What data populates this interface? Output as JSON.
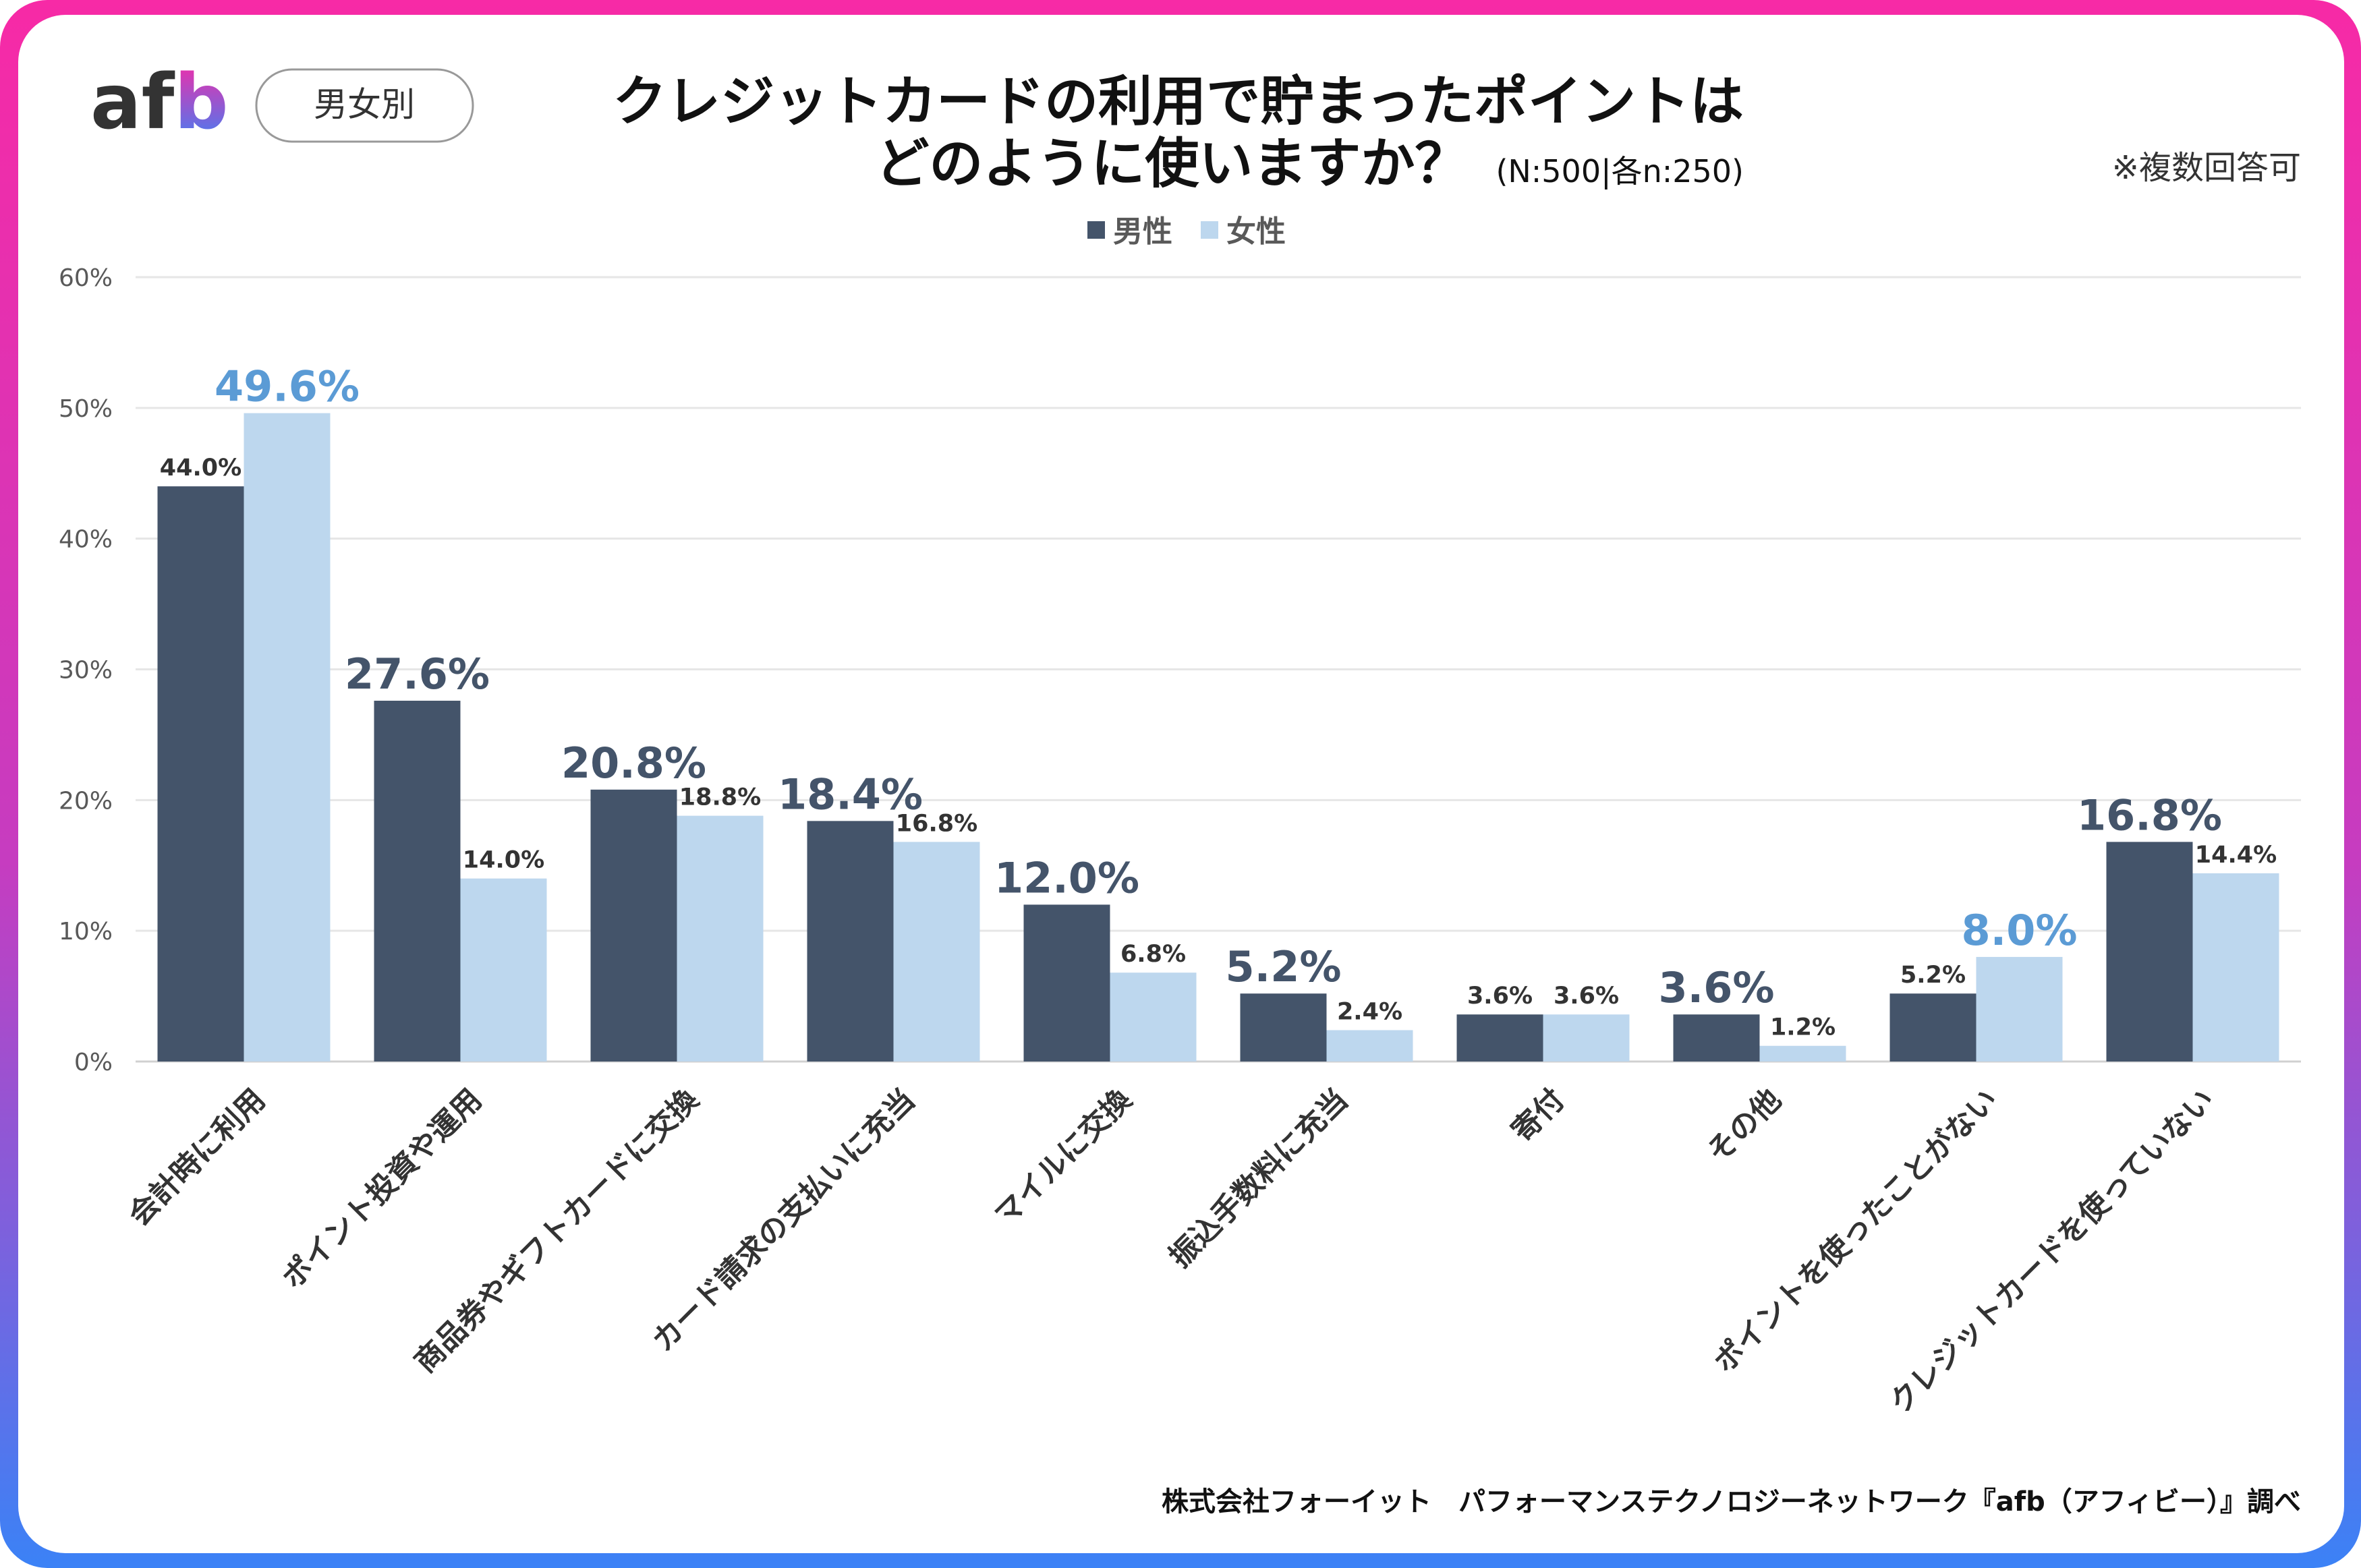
{
  "logo": {
    "text": "afb"
  },
  "badge": {
    "label": "男女別"
  },
  "title": {
    "line1": "クレジットカードの利用で貯まったポイントは",
    "line2": "どのように使いますか？",
    "sample": "(N:500|各n:250)"
  },
  "note": "※複数回答可",
  "footer": "株式会社フォーイット　パフォーマンステクノロジーネットワーク『afb（アフィビー）』調べ",
  "colors": {
    "male": "#44546a",
    "female": "#bdd7ee",
    "male_highlight_label": "#44546a",
    "female_highlight_label": "#5b9bd5",
    "border_top": "#f72aa6",
    "border_bottom": "#3b82f6"
  },
  "chart_data": {
    "type": "bar",
    "legend_position": "top",
    "grid": true,
    "ylim": [
      0,
      60
    ],
    "yticks": [
      "0%",
      "10%",
      "20%",
      "30%",
      "40%",
      "50%",
      "60%"
    ],
    "categories": [
      "会計時に利用",
      "ポイント投資や運用",
      "商品券やギフトカードに交換",
      "カード請求の支払いに充当",
      "マイルに交換",
      "振込手数料に充当",
      "寄付",
      "その他",
      "ポイントを使ったことがない",
      "クレジットカードを使っていない"
    ],
    "series": [
      {
        "name": "男性",
        "values": [
          44.0,
          27.6,
          20.8,
          18.4,
          12.0,
          5.2,
          3.6,
          3.6,
          5.2,
          16.8
        ]
      },
      {
        "name": "女性",
        "values": [
          49.6,
          14.0,
          18.8,
          16.8,
          6.8,
          2.4,
          3.6,
          1.2,
          8.0,
          14.4
        ]
      }
    ],
    "labels": [
      [
        "44.0%",
        "27.6%",
        "20.8%",
        "18.4%",
        "12.0%",
        "5.2%",
        "3.6%",
        "3.6%",
        "5.2%",
        "16.8%"
      ],
      [
        "49.6%",
        "14.0%",
        "18.8%",
        "16.8%",
        "6.8%",
        "2.4%",
        "3.6%",
        "1.2%",
        "8.0%",
        "14.4%"
      ]
    ],
    "highlight": [
      "女性",
      "男性",
      "男性",
      "男性",
      "男性",
      "男性",
      "",
      "男性",
      "女性",
      "男性"
    ]
  }
}
